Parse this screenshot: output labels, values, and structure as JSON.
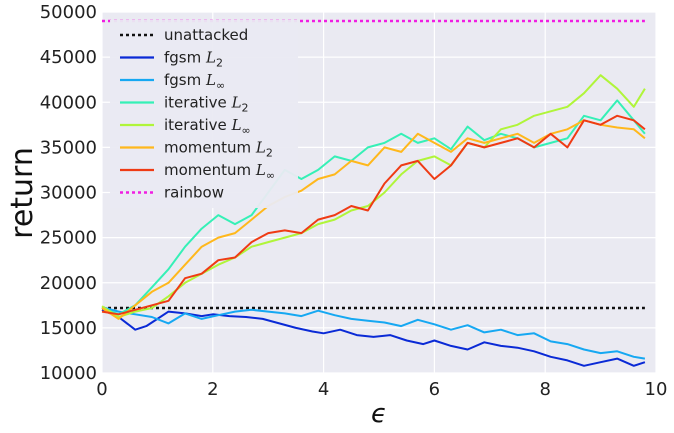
{
  "chart_data": {
    "type": "line",
    "xlabel": "ϵ",
    "ylabel": "return",
    "xlim": [
      0,
      10
    ],
    "ylim": [
      10000,
      50000
    ],
    "xticks": [
      "0",
      "2",
      "4",
      "6",
      "8",
      "10"
    ],
    "yticks": [
      "10000",
      "15000",
      "20000",
      "25000",
      "30000",
      "35000",
      "40000",
      "45000",
      "50000"
    ],
    "grid": true,
    "legend_position": "top-left",
    "background": "#eaeaf2",
    "series": [
      {
        "name": "unattacked",
        "label_main": "unattacked",
        "label_sub": "",
        "color": "#111111",
        "dash": "dotted",
        "x": [
          0,
          9.8
        ],
        "y": [
          17200,
          17200
        ]
      },
      {
        "name": "fgsm L2",
        "label_main": "fgsm",
        "label_sub": "2",
        "color": "#0a2ad6",
        "dash": "solid",
        "x": [
          0,
          0.3,
          0.6,
          0.8,
          1.0,
          1.2,
          1.5,
          1.8,
          2.0,
          2.3,
          2.6,
          2.9,
          3.2,
          3.5,
          3.8,
          4.0,
          4.3,
          4.6,
          4.9,
          5.2,
          5.5,
          5.8,
          6.0,
          6.3,
          6.6,
          6.9,
          7.2,
          7.5,
          7.8,
          8.1,
          8.4,
          8.7,
          9.0,
          9.3,
          9.6,
          9.8
        ],
        "y": [
          17000,
          16200,
          14800,
          15200,
          16000,
          16800,
          16600,
          16300,
          16500,
          16300,
          16200,
          16000,
          15500,
          15000,
          14600,
          14400,
          14800,
          14200,
          14000,
          14200,
          13600,
          13200,
          13600,
          13000,
          12600,
          13400,
          13000,
          12800,
          12400,
          11800,
          11400,
          10800,
          11200,
          11600,
          10800,
          11200
        ]
      },
      {
        "name": "fgsm L∞",
        "label_main": "fgsm",
        "label_sub": "∞",
        "color": "#16a8f2",
        "dash": "solid",
        "x": [
          0,
          0.3,
          0.6,
          0.9,
          1.2,
          1.5,
          1.8,
          2.1,
          2.4,
          2.7,
          3.0,
          3.3,
          3.6,
          3.9,
          4.2,
          4.5,
          4.8,
          5.1,
          5.4,
          5.7,
          6.0,
          6.3,
          6.6,
          6.9,
          7.2,
          7.5,
          7.8,
          8.1,
          8.4,
          8.7,
          9.0,
          9.3,
          9.6,
          9.8
        ],
        "y": [
          17300,
          16800,
          16500,
          16200,
          15500,
          16600,
          16000,
          16400,
          16800,
          17000,
          16800,
          16600,
          16300,
          16900,
          16400,
          16000,
          15800,
          15600,
          15200,
          15900,
          15400,
          14800,
          15300,
          14500,
          14800,
          14200,
          14400,
          13500,
          13200,
          12600,
          12200,
          12400,
          11800,
          11600
        ]
      },
      {
        "name": "iterative L2",
        "label_main": "iterative",
        "label_sub": "2",
        "color": "#35f0b6",
        "dash": "solid",
        "x": [
          0,
          0.3,
          0.6,
          0.9,
          1.2,
          1.5,
          1.8,
          2.1,
          2.4,
          2.7,
          3.0,
          3.3,
          3.6,
          3.9,
          4.2,
          4.5,
          4.8,
          5.1,
          5.4,
          5.7,
          6.0,
          6.3,
          6.6,
          6.9,
          7.2,
          7.5,
          7.8,
          8.1,
          8.4,
          8.7,
          9.0,
          9.3,
          9.6,
          9.8
        ],
        "y": [
          17200,
          16500,
          17500,
          19500,
          21500,
          24000,
          26000,
          27500,
          26500,
          27500,
          30000,
          32500,
          31500,
          32500,
          34000,
          33500,
          35000,
          35500,
          36500,
          35500,
          36000,
          34800,
          37300,
          35800,
          36500,
          36000,
          35000,
          35500,
          36000,
          38500,
          38000,
          40200,
          38000,
          36500
        ]
      },
      {
        "name": "iterative L∞",
        "label_main": "iterative",
        "label_sub": "∞",
        "color": "#b0f53a",
        "dash": "solid",
        "x": [
          0,
          0.3,
          0.6,
          0.9,
          1.2,
          1.5,
          1.8,
          2.1,
          2.4,
          2.7,
          3.0,
          3.3,
          3.6,
          3.9,
          4.2,
          4.5,
          4.8,
          5.1,
          5.4,
          5.7,
          6.0,
          6.3,
          6.6,
          6.9,
          7.2,
          7.5,
          7.8,
          8.1,
          8.4,
          8.7,
          9.0,
          9.3,
          9.6,
          9.8
        ],
        "y": [
          17400,
          16200,
          16800,
          17200,
          18500,
          20000,
          21000,
          22000,
          22800,
          24000,
          24500,
          25000,
          25500,
          26500,
          27000,
          28000,
          28500,
          30000,
          32000,
          33500,
          34000,
          33000,
          35500,
          35000,
          37000,
          37500,
          38500,
          39000,
          39500,
          41000,
          43000,
          41500,
          39500,
          41500
        ]
      },
      {
        "name": "momentum L2",
        "label_main": "momentum",
        "label_sub": "2",
        "color": "#ffb81c",
        "dash": "solid",
        "x": [
          0,
          0.3,
          0.6,
          0.9,
          1.2,
          1.5,
          1.8,
          2.1,
          2.4,
          2.7,
          3.0,
          3.3,
          3.6,
          3.9,
          4.2,
          4.5,
          4.8,
          5.1,
          5.4,
          5.7,
          6.0,
          6.3,
          6.6,
          6.9,
          7.2,
          7.5,
          7.8,
          8.1,
          8.4,
          8.7,
          9.0,
          9.3,
          9.6,
          9.8
        ],
        "y": [
          17200,
          16000,
          17500,
          19000,
          20000,
          22000,
          24000,
          25000,
          25500,
          27000,
          28500,
          29500,
          30200,
          31500,
          32000,
          33500,
          33000,
          35000,
          34500,
          36500,
          35500,
          34500,
          36000,
          35500,
          36000,
          36500,
          35500,
          36500,
          37000,
          38000,
          37500,
          37200,
          37000,
          36000
        ]
      },
      {
        "name": "momentum L∞",
        "label_main": "momentum",
        "label_sub": "∞",
        "color": "#ef3b14",
        "dash": "solid",
        "x": [
          0,
          0.3,
          0.6,
          0.9,
          1.2,
          1.5,
          1.8,
          2.1,
          2.4,
          2.7,
          3.0,
          3.3,
          3.6,
          3.9,
          4.2,
          4.5,
          4.8,
          5.1,
          5.4,
          5.7,
          6.0,
          6.3,
          6.6,
          6.9,
          7.2,
          7.5,
          7.8,
          8.1,
          8.4,
          8.7,
          9.0,
          9.3,
          9.6,
          9.8
        ],
        "y": [
          16800,
          16500,
          17000,
          17500,
          18000,
          20500,
          21000,
          22500,
          22800,
          24500,
          25500,
          25800,
          25500,
          27000,
          27500,
          28500,
          28000,
          31000,
          33000,
          33500,
          31500,
          33000,
          35500,
          35000,
          35500,
          36000,
          35000,
          36500,
          35000,
          38000,
          37500,
          38500,
          38000,
          37000
        ]
      },
      {
        "name": "rainbow",
        "label_main": "rainbow",
        "label_sub": "",
        "color": "#f01ee2",
        "dash": "dotted",
        "x": [
          0,
          9.8
        ],
        "y": [
          49000,
          49000
        ]
      }
    ]
  }
}
